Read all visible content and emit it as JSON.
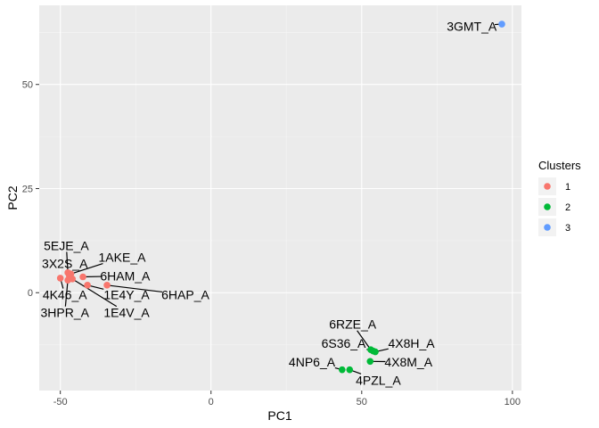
{
  "chart_data": {
    "type": "scatter",
    "xlabel": "PC1",
    "ylabel": "PC2",
    "xlim": [
      -57,
      103
    ],
    "ylim": [
      -23.5,
      69
    ],
    "x_ticks": [
      -50,
      0,
      50,
      100
    ],
    "x_tick_labels": [
      "-50",
      "0",
      "50",
      "100"
    ],
    "y_ticks": [
      0,
      25,
      50
    ],
    "y_tick_labels": [
      "0",
      "25",
      "50"
    ],
    "grid": true,
    "legend": {
      "title": "Clusters",
      "placement": "right",
      "entries": [
        {
          "label": "1",
          "color": "#F8766D"
        },
        {
          "label": "2",
          "color": "#00BA38"
        },
        {
          "label": "3",
          "color": "#619CFF"
        }
      ]
    },
    "series": [
      {
        "name": "1",
        "color": "#F8766D",
        "points": [
          {
            "label": "5EJE_A",
            "x": -47.5,
            "y": 4.8,
            "lx": -48.0,
            "ly": 11.3
          },
          {
            "label": "3X2S_A",
            "x": -47.0,
            "y": 4.0,
            "lx": -48.5,
            "ly": 7.0
          },
          {
            "label": "1AKE_A",
            "x": -46.5,
            "y": 4.5,
            "lx": -29.5,
            "ly": 8.5
          },
          {
            "label": "6HAM_A",
            "x": -42.5,
            "y": 3.8,
            "lx": -28.5,
            "ly": 4.0
          },
          {
            "label": "4K46_A",
            "x": -50.0,
            "y": 3.5,
            "lx": -48.5,
            "ly": -0.5
          },
          {
            "label": "1E4Y_A",
            "x": -41.0,
            "y": 1.8,
            "lx": -28.0,
            "ly": -0.5
          },
          {
            "label": "6HAP_A",
            "x": -34.5,
            "y": 1.8,
            "lx": -8.5,
            "ly": -0.5
          },
          {
            "label": "3HPR_A",
            "x": -47.5,
            "y": 3.0,
            "lx": -48.5,
            "ly": -4.8
          },
          {
            "label": "1E4V_A",
            "x": -46.0,
            "y": 3.3,
            "lx": -28.0,
            "ly": -4.8
          }
        ]
      },
      {
        "name": "2",
        "color": "#00BA38",
        "points": [
          {
            "label": "6RZE_A",
            "x": 53.0,
            "y": -13.7,
            "lx": 47.0,
            "ly": -7.6
          },
          {
            "label": "6S36_A",
            "x": 53.8,
            "y": -14.0,
            "lx": 44.0,
            "ly": -12.2
          },
          {
            "label": "4X8H_A",
            "x": 54.5,
            "y": -14.2,
            "lx": 66.5,
            "ly": -12.2
          },
          {
            "label": "4X8M_A",
            "x": 52.8,
            "y": -16.5,
            "lx": 65.5,
            "ly": -16.6
          },
          {
            "label": "4NP6_A",
            "x": 43.5,
            "y": -18.5,
            "lx": 33.5,
            "ly": -16.6
          },
          {
            "label": "4PZL_A",
            "x": 46.0,
            "y": -18.5,
            "lx": 55.5,
            "ly": -21.0
          }
        ]
      },
      {
        "name": "3",
        "color": "#619CFF",
        "points": [
          {
            "label": "3GMT_A",
            "x": 96.5,
            "y": 64.5,
            "lx": 86.5,
            "ly": 64.0
          }
        ]
      }
    ]
  }
}
